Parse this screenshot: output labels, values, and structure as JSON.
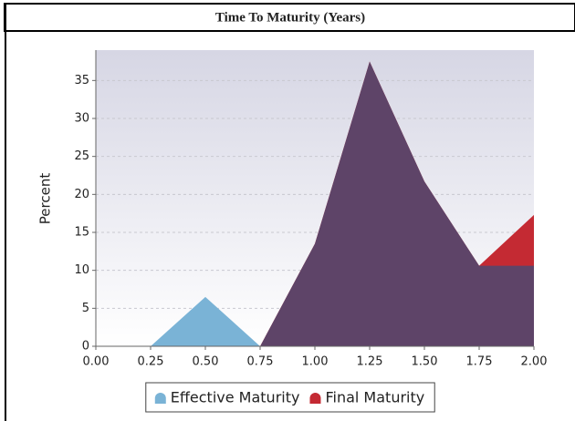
{
  "chart_data": {
    "type": "area",
    "title": "Time To Maturity (Years)",
    "y_label": "Percent",
    "x": [
      0,
      0.25,
      0.5,
      0.75,
      1.0,
      1.25,
      1.5,
      1.75,
      2.0
    ],
    "series": [
      {
        "name": "Effective Maturity",
        "color": "#7ab3d6",
        "values": [
          0,
          0,
          6.5,
          0,
          13.5,
          37.5,
          21.7,
          10.6,
          10.6
        ]
      },
      {
        "name": "Final Maturity",
        "color": "#c42a33",
        "values": [
          0,
          0,
          0,
          0,
          13.5,
          37.5,
          21.7,
          10.6,
          17.3
        ]
      }
    ],
    "overlap_color": "#5e4468",
    "xlim": [
      0,
      2
    ],
    "xticks": [
      {
        "value": 0,
        "label": "0.00"
      },
      {
        "value": 0.25,
        "label": "0.25"
      },
      {
        "value": 0.5,
        "label": "0.50"
      },
      {
        "value": 0.75,
        "label": "0.75"
      },
      {
        "value": 1,
        "label": "1.00"
      },
      {
        "value": 1.25,
        "label": "1.25"
      },
      {
        "value": 1.5,
        "label": "1.50"
      },
      {
        "value": 1.75,
        "label": "1.75"
      },
      {
        "value": 2,
        "label": "2.00"
      }
    ],
    "ylim": [
      0,
      39
    ],
    "yticks": [
      0,
      5,
      10,
      15,
      20,
      25,
      30,
      35
    ],
    "grid": true,
    "legend": "bottom"
  }
}
